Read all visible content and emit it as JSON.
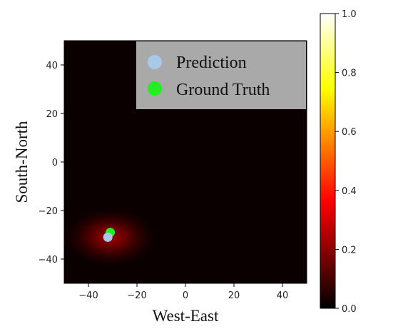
{
  "chart_data": [
    {
      "type": "heatmap",
      "title": "",
      "xlabel": "West-East",
      "ylabel": "South-North",
      "xlim": [
        -50,
        50
      ],
      "ylim": [
        -50,
        50
      ],
      "xticks": [
        -40,
        -20,
        0,
        20,
        40
      ],
      "yticks": [
        -40,
        -20,
        0,
        20,
        40
      ],
      "grid": false,
      "legend_position": "top-right",
      "hotspot": {
        "x": -31,
        "y": -31,
        "value": 0.35
      },
      "series": [
        {
          "name": "Prediction",
          "type": "scatter",
          "color": "#a8c8e8",
          "points": [
            [
              -32,
              -31
            ]
          ]
        },
        {
          "name": "Ground Truth",
          "type": "scatter",
          "color": "#22ee22",
          "points": [
            [
              -31,
              -29
            ]
          ]
        }
      ]
    },
    {
      "type": "colorbar",
      "colormap": "hot",
      "range": [
        0.0,
        1.0
      ],
      "ticks": [
        {
          "value": 0.0,
          "label": "0.0"
        },
        {
          "value": 0.2,
          "label": "0.2"
        },
        {
          "value": 0.4,
          "label": "0.4"
        },
        {
          "value": 0.6,
          "label": "0.6"
        },
        {
          "value": 0.8,
          "label": "0.8"
        },
        {
          "value": 1.0,
          "label": "1.0"
        }
      ]
    }
  ]
}
